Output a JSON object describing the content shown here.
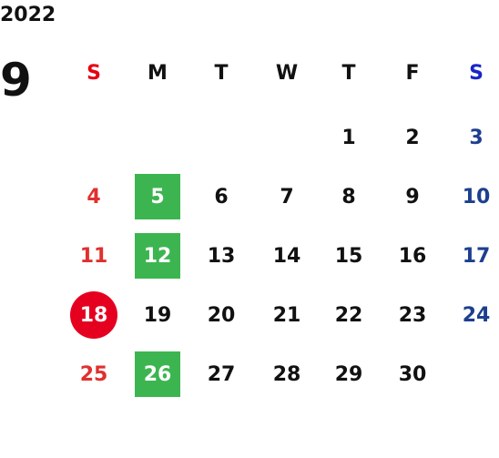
{
  "year": "2022",
  "month": "9",
  "weekdays": [
    "S",
    "M",
    "T",
    "W",
    "T",
    "F",
    "S"
  ],
  "highlight_colors": {
    "square": "#3cb550",
    "circle": "#e60020"
  },
  "weeks": [
    [
      null,
      null,
      null,
      null,
      1,
      2,
      3
    ],
    [
      4,
      {
        "day": 5,
        "highlight": "square"
      },
      6,
      7,
      8,
      9,
      10
    ],
    [
      11,
      {
        "day": 12,
        "highlight": "square"
      },
      13,
      14,
      15,
      16,
      17
    ],
    [
      {
        "day": 18,
        "highlight": "circle"
      },
      19,
      20,
      21,
      22,
      23,
      24
    ],
    [
      25,
      {
        "day": 26,
        "highlight": "square"
      },
      27,
      28,
      29,
      30,
      null
    ]
  ]
}
